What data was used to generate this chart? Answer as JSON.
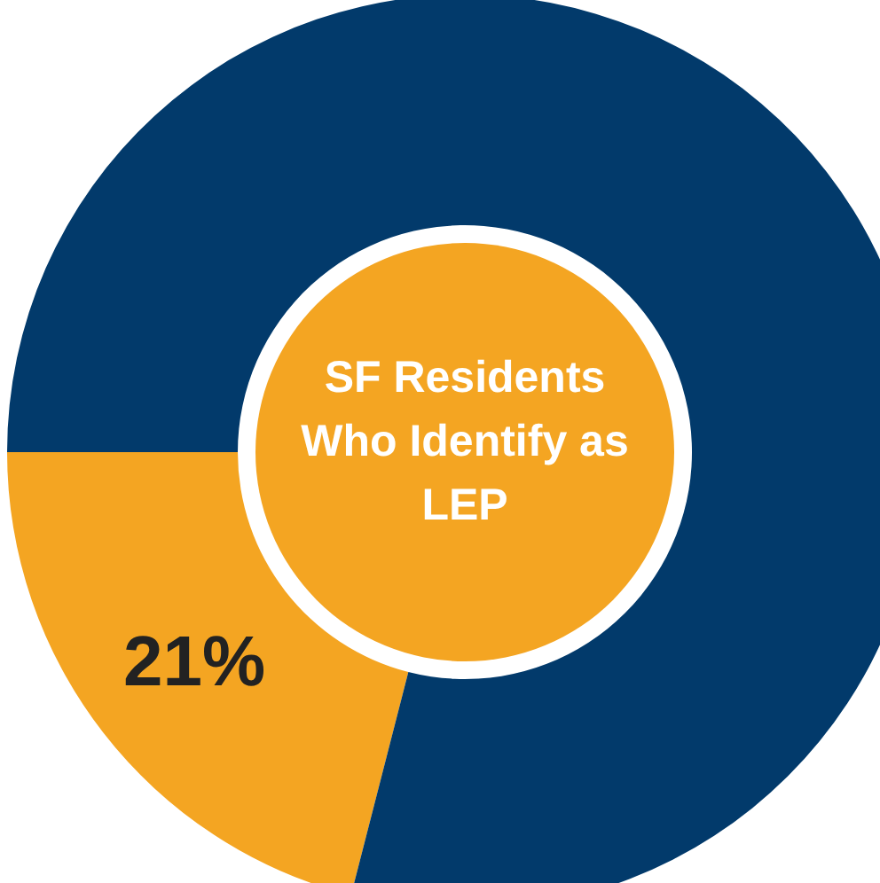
{
  "chart_data": {
    "type": "donut",
    "title": "SF Residents Who Identify as LEP",
    "categories": [
      null,
      null
    ],
    "values": [
      21,
      79
    ],
    "colors": [
      "#f4a522",
      "#023a6b"
    ],
    "value_labels": [
      "21%",
      null
    ]
  }
}
